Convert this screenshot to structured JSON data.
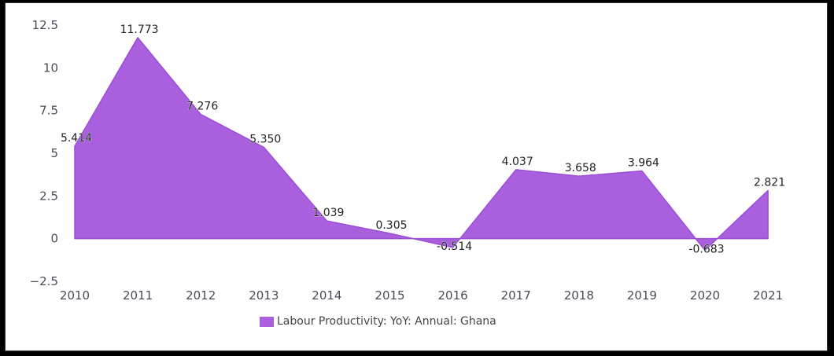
{
  "colors": {
    "series": "#a95fde",
    "series_edge": "#9a4fd4"
  },
  "chart_data": {
    "type": "area",
    "x": [
      "2010",
      "2011",
      "2012",
      "2013",
      "2014",
      "2015",
      "2016",
      "2017",
      "2018",
      "2019",
      "2020",
      "2021"
    ],
    "series": [
      {
        "name": "Labour Productivity: YoY: Annual: Ghana",
        "values": [
          5.414,
          11.773,
          7.276,
          5.35,
          1.039,
          0.305,
          -0.514,
          4.037,
          3.658,
          3.964,
          -0.683,
          2.821
        ],
        "labels": [
          "5.414",
          "11.773",
          "7.276",
          "5.350",
          "1.039",
          "0.305",
          "-0.514",
          "4.037",
          "3.658",
          "3.964",
          "-0.683",
          "2.821"
        ]
      }
    ],
    "y_ticks": [
      "12.5",
      "10",
      "7.5",
      "5",
      "2.5",
      "0",
      "−2.5"
    ],
    "ylim": [
      -2.5,
      12.5
    ],
    "grid": false,
    "legend_position": "bottom"
  }
}
